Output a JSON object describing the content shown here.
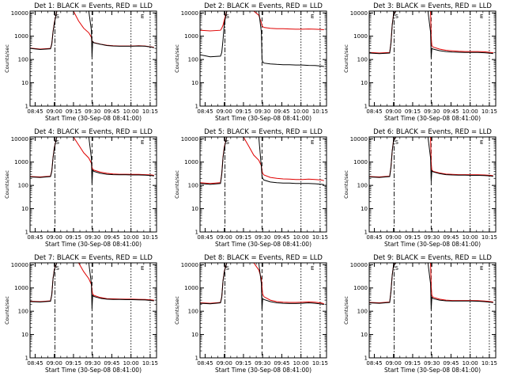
{
  "colors": {
    "events": "#000000",
    "lld": "#e00000",
    "background": "#ffffff"
  },
  "chart_data": {
    "type": "line",
    "shared": {
      "xlabel": "Start Time (30-Sep-08 08:41:00)",
      "ylabel": "Counts/sec",
      "x_tick_labels": [
        "08:45",
        "09:00",
        "09:15",
        "09:30",
        "09:45",
        "10:00",
        "10:15"
      ],
      "x_tick_minutes": [
        4,
        19,
        34,
        49,
        64,
        79,
        94
      ],
      "xlim_minutes": [
        0,
        99
      ],
      "y_tick_labels": [
        "1",
        "10",
        "100",
        "1000",
        "10000"
      ],
      "y_tick_values": [
        1,
        10,
        100,
        1000,
        10000
      ],
      "ylim": [
        1,
        12000
      ],
      "y_scale": "log",
      "annotations": [
        {
          "label": "S",
          "x_minute": 21.5
        },
        {
          "label": "E",
          "x_minute": 88
        }
      ],
      "vlines": [
        {
          "x_minute": 19.5,
          "style": "dashdot"
        },
        {
          "x_minute": 48.5,
          "style": "dashed"
        },
        {
          "x_minute": 79,
          "style": "dotted"
        },
        {
          "x_minute": 94,
          "style": "dotted"
        }
      ]
    },
    "panels": [
      {
        "title": "Det 1: BLACK = Events, RED = LLD",
        "x": [
          0,
          8,
          16,
          17,
          18,
          19,
          21,
          22,
          24,
          26,
          30,
          34,
          38,
          42,
          46,
          48,
          48.5,
          49,
          50,
          55,
          60,
          65,
          70,
          75,
          80,
          85,
          90,
          95,
          97
        ],
        "series": [
          {
            "name": "BLACK = Events",
            "values": [
              300,
              270,
              290,
              450,
              1500,
              3500,
              12000,
              12000,
              12000,
              12000,
              12000,
              12000,
              12000,
              12000,
              12000,
              1800,
              130,
              600,
              520,
              450,
              400,
              380,
              370,
              370,
              370,
              380,
              370,
              340,
              320
            ]
          },
          {
            "name": "RED = LLD",
            "values": [
              310,
              280,
              300,
              480,
              1600,
              3800,
              12000,
              12000,
              12000,
              12000,
              12000,
              12000,
              4500,
              2200,
              1400,
              900,
              600,
              560,
              530,
              460,
              410,
              390,
              380,
              380,
              380,
              390,
              380,
              350,
              330
            ]
          }
        ]
      },
      {
        "title": "Det 2: BLACK = Events, RED = LLD",
        "x": [
          0,
          8,
          16,
          17,
          18,
          19,
          21,
          22,
          24,
          26,
          30,
          34,
          38,
          42,
          46,
          48,
          48.5,
          49,
          50,
          55,
          60,
          65,
          70,
          75,
          80,
          85,
          90,
          95,
          97
        ],
        "series": [
          {
            "name": "BLACK = Events",
            "values": [
              160,
              130,
              140,
              200,
              700,
              3500,
              12000,
              12000,
              12000,
              12000,
              12000,
              12000,
              12000,
              12000,
              12000,
              1500,
              100,
              80,
              70,
              65,
              62,
              60,
              60,
              58,
              58,
              56,
              55,
              52,
              50
            ]
          },
          {
            "name": "RED = LLD",
            "values": [
              1800,
              1700,
              1800,
              2200,
              3000,
              5000,
              12000,
              12000,
              12000,
              12000,
              12000,
              12000,
              12000,
              12000,
              8000,
              3800,
              2800,
              2600,
              2400,
              2200,
              2100,
              2100,
              2050,
              2000,
              2000,
              2050,
              2000,
              1950,
              1900
            ]
          }
        ]
      },
      {
        "title": "Det 3: BLACK = Events, RED = LLD",
        "x": [
          0,
          8,
          16,
          17,
          18,
          19,
          21,
          22,
          24,
          26,
          30,
          34,
          38,
          42,
          46,
          48,
          48.5,
          49,
          50,
          55,
          60,
          65,
          70,
          75,
          80,
          85,
          90,
          95,
          97
        ],
        "series": [
          {
            "name": "BLACK = Events",
            "values": [
              190,
              180,
              190,
              500,
              3000,
              8000,
              12000,
              12000,
              12000,
              12000,
              12000,
              12000,
              12000,
              12000,
              12000,
              1500,
              120,
              300,
              280,
              240,
              220,
              210,
              205,
              200,
              200,
              200,
              195,
              185,
              180
            ]
          },
          {
            "name": "RED = LLD",
            "values": [
              200,
              190,
              200,
              520,
              3200,
              8500,
              12000,
              12000,
              12000,
              12000,
              12000,
              12000,
              12000,
              12000,
              12000,
              12000,
              900,
              400,
              340,
              280,
              250,
              235,
              225,
              220,
              220,
              220,
              215,
              200,
              195
            ]
          }
        ]
      },
      {
        "title": "Det 4: BLACK = Events, RED = LLD",
        "x": [
          0,
          8,
          16,
          17,
          18,
          19,
          21,
          22,
          24,
          26,
          30,
          34,
          38,
          42,
          46,
          48,
          48.5,
          49,
          50,
          55,
          60,
          65,
          70,
          75,
          80,
          85,
          90,
          95,
          97
        ],
        "series": [
          {
            "name": "BLACK = Events",
            "values": [
              230,
              220,
              240,
              400,
              1500,
              4000,
              12000,
              12000,
              12000,
              12000,
              12000,
              12000,
              12000,
              12000,
              12000,
              1500,
              120,
              450,
              400,
              330,
              300,
              290,
              285,
              285,
              280,
              280,
              275,
              265,
              255
            ]
          },
          {
            "name": "RED = LLD",
            "values": [
              240,
              230,
              250,
              420,
              1600,
              4200,
              12000,
              12000,
              12000,
              12000,
              12000,
              12000,
              5500,
              2500,
              1500,
              900,
              600,
              500,
              450,
              370,
              330,
              310,
              300,
              300,
              295,
              295,
              290,
              280,
              270
            ]
          }
        ]
      },
      {
        "title": "Det 5: BLACK = Events, RED = LLD",
        "x": [
          0,
          8,
          16,
          17,
          18,
          19,
          21,
          22,
          24,
          26,
          30,
          34,
          38,
          42,
          46,
          48,
          48.5,
          49,
          50,
          55,
          60,
          65,
          70,
          75,
          80,
          85,
          90,
          95,
          97
        ],
        "series": [
          {
            "name": "BLACK = Events",
            "values": [
              120,
              110,
              120,
              300,
              1500,
              4000,
              12000,
              12000,
              12000,
              12000,
              12000,
              12000,
              12000,
              12000,
              12000,
              600,
              250,
              200,
              170,
              140,
              130,
              125,
              125,
              120,
              120,
              120,
              118,
              112,
              108
            ]
          },
          {
            "name": "RED = LLD",
            "values": [
              130,
              120,
              130,
              330,
              1700,
              4500,
              12000,
              12000,
              12000,
              12000,
              12000,
              12000,
              5000,
              2000,
              1200,
              700,
              420,
              330,
              280,
              220,
              200,
              190,
              185,
              180,
              180,
              185,
              180,
              170,
              160
            ]
          }
        ]
      },
      {
        "title": "Det 6: BLACK = Events, RED = LLD",
        "x": [
          0,
          8,
          16,
          17,
          18,
          19,
          21,
          22,
          24,
          26,
          30,
          34,
          38,
          42,
          46,
          48,
          48.5,
          49,
          50,
          55,
          60,
          65,
          70,
          75,
          80,
          85,
          90,
          95,
          97
        ],
        "series": [
          {
            "name": "BLACK = Events",
            "values": [
              230,
              220,
              240,
              600,
              3000,
              8000,
              12000,
              12000,
              12000,
              12000,
              12000,
              12000,
              12000,
              12000,
              12000,
              1500,
              150,
              420,
              380,
              320,
              290,
              280,
              275,
              275,
              270,
              270,
              265,
              255,
              245
            ]
          },
          {
            "name": "RED = LLD",
            "values": [
              240,
              230,
              250,
              620,
              3100,
              8300,
              12000,
              12000,
              12000,
              12000,
              12000,
              12000,
              12000,
              12000,
              12000,
              12000,
              900,
              450,
              400,
              340,
              305,
              295,
              290,
              290,
              285,
              285,
              280,
              270,
              260
            ]
          }
        ]
      },
      {
        "title": "Det 7: BLACK = Events, RED = LLD",
        "x": [
          0,
          8,
          16,
          17,
          18,
          19,
          21,
          22,
          24,
          26,
          30,
          34,
          38,
          42,
          46,
          48,
          48.5,
          49,
          50,
          55,
          60,
          65,
          70,
          75,
          80,
          85,
          90,
          95,
          97
        ],
        "series": [
          {
            "name": "BLACK = Events",
            "values": [
              260,
              250,
              270,
              500,
              2500,
              6000,
              12000,
              12000,
              12000,
              12000,
              12000,
              12000,
              12000,
              12000,
              12000,
              1500,
              130,
              480,
              430,
              360,
              330,
              320,
              320,
              315,
              315,
              310,
              305,
              290,
              280
            ]
          },
          {
            "name": "RED = LLD",
            "values": [
              270,
              260,
              280,
              520,
              2600,
              6300,
              12000,
              12000,
              12000,
              12000,
              12000,
              12000,
              12000,
              5000,
              2500,
              1400,
              800,
              550,
              480,
              390,
              350,
              340,
              335,
              330,
              330,
              325,
              320,
              305,
              295
            ]
          }
        ]
      },
      {
        "title": "Det 8: BLACK = Events, RED = LLD",
        "x": [
          0,
          8,
          16,
          17,
          18,
          19,
          21,
          22,
          24,
          26,
          30,
          34,
          38,
          42,
          46,
          48,
          48.5,
          49,
          50,
          55,
          60,
          65,
          70,
          75,
          80,
          85,
          90,
          95,
          97
        ],
        "series": [
          {
            "name": "BLACK = Events",
            "values": [
              220,
              210,
              230,
              400,
              2000,
              5000,
              12000,
              12000,
              12000,
              12000,
              12000,
              12000,
              12000,
              12000,
              12000,
              1500,
              120,
              350,
              320,
              260,
              230,
              220,
              215,
              215,
              220,
              230,
              220,
              205,
              195
            ]
          },
          {
            "name": "RED = LLD",
            "values": [
              230,
              220,
              240,
              420,
              2100,
              5300,
              12000,
              12000,
              12000,
              12000,
              12000,
              12000,
              12000,
              12000,
              6000,
              2500,
              1100,
              550,
              420,
              300,
              260,
              245,
              240,
              240,
              245,
              255,
              245,
              225,
              210
            ]
          }
        ]
      },
      {
        "title": "Det 9: BLACK = Events, RED = LLD",
        "x": [
          0,
          8,
          16,
          17,
          18,
          19,
          21,
          22,
          24,
          26,
          30,
          34,
          38,
          42,
          46,
          48,
          48.5,
          49,
          50,
          55,
          60,
          65,
          70,
          75,
          80,
          85,
          90,
          95,
          97
        ],
        "series": [
          {
            "name": "BLACK = Events",
            "values": [
              230,
              220,
              240,
              700,
              3500,
              9000,
              12000,
              12000,
              12000,
              12000,
              12000,
              12000,
              12000,
              12000,
              12000,
              1500,
              120,
              400,
              350,
              300,
              280,
              275,
              275,
              275,
              275,
              270,
              260,
              245,
              235
            ]
          },
          {
            "name": "RED = LLD",
            "values": [
              240,
              230,
              250,
              720,
              3600,
              9300,
              12000,
              12000,
              12000,
              12000,
              12000,
              12000,
              12000,
              12000,
              12000,
              12000,
              1200,
              480,
              400,
              330,
              300,
              290,
              290,
              290,
              290,
              285,
              275,
              260,
              250
            ]
          }
        ]
      }
    ]
  }
}
